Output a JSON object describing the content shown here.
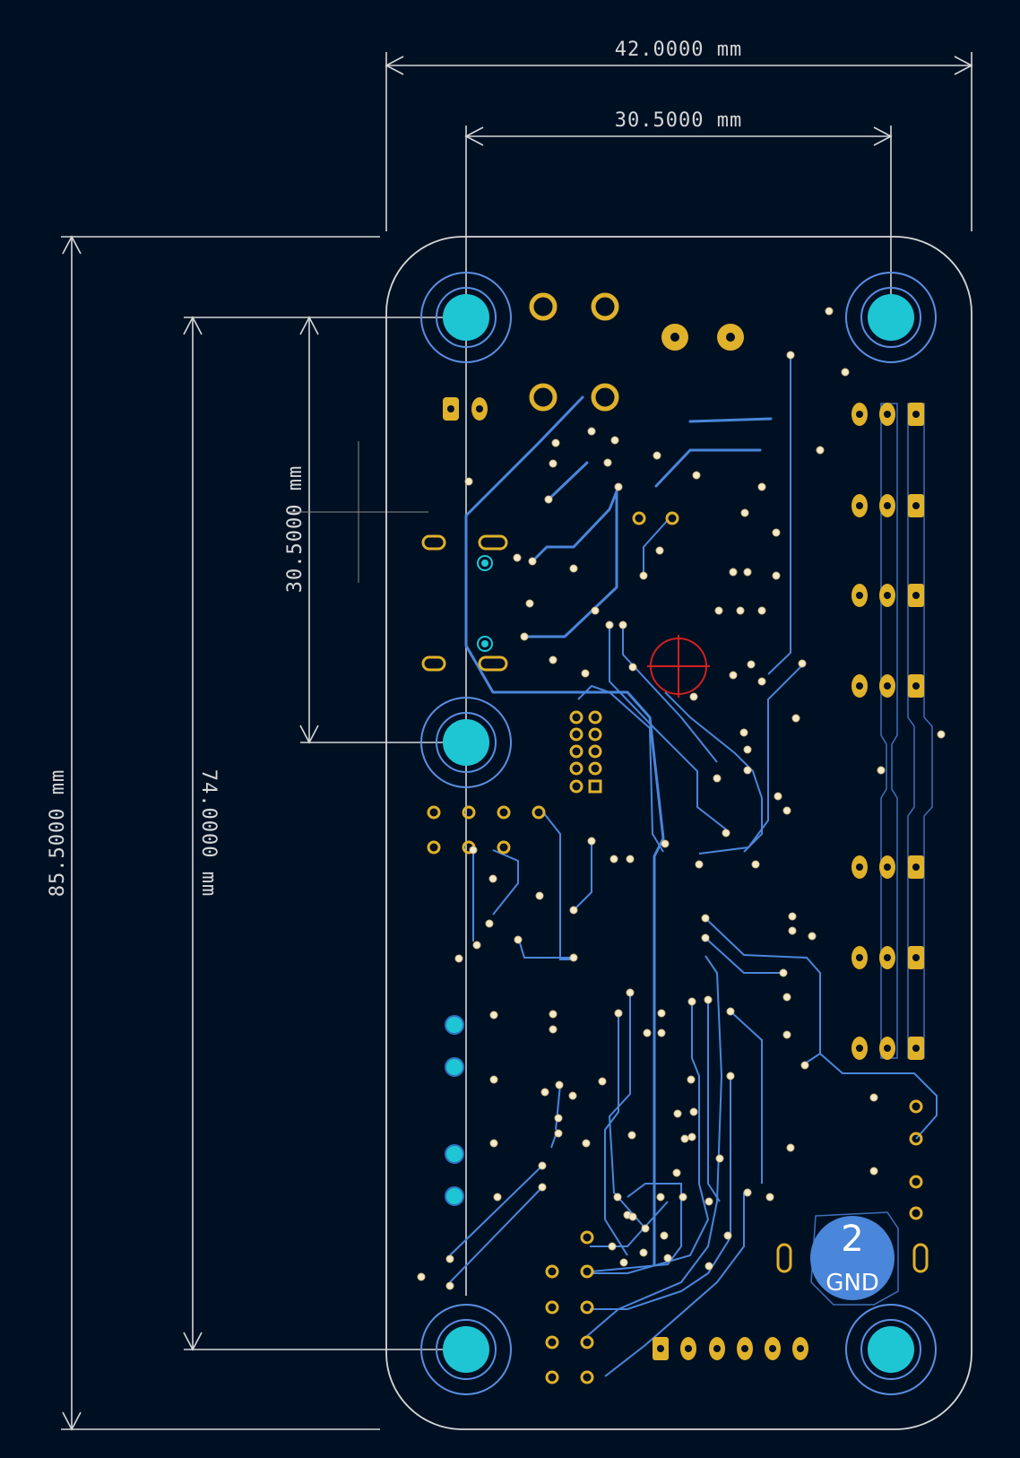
{
  "dimensions": {
    "width_outer": "42.0000 mm",
    "width_holes": "30.5000 mm",
    "height_outer": "85.5000 mm",
    "height_holes": "74.0000 mm",
    "height_short": "30.5000 mm"
  },
  "gnd_badge": {
    "number": "2",
    "label": "GND"
  },
  "colors": {
    "background": "#001023",
    "copper_trace": "#4a86d9",
    "pad": "#e0b12a",
    "mount_hole": "#1ec6d4",
    "edge_cut": "#d6d6d6",
    "marker": "#d02020"
  }
}
